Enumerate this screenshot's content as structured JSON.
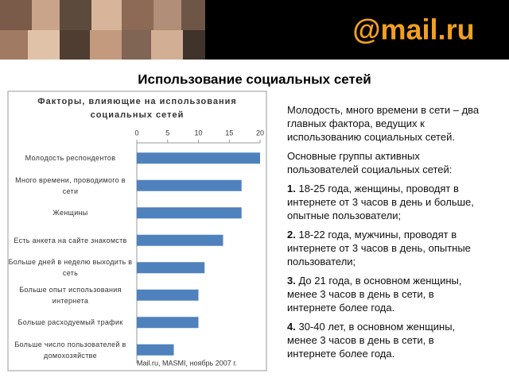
{
  "logo": "@mail.ru",
  "slide_title": "Использование социальных сетей",
  "chart_data": {
    "type": "hbar",
    "title": "Факторы, влияющие на использования социальных сетей",
    "categories": [
      "Молодость респондентов",
      "Много времени, проводимого в сети",
      "Женщины",
      "Есть анкета на сайте знакомств",
      "Больше дней в неделю выходить в сеть",
      "Больше опыт использования интернета",
      "Больше расходуемый трафик",
      "Больше число пользователей в домохозяйстве"
    ],
    "values": [
      20,
      17,
      17,
      14,
      11,
      10,
      10,
      6
    ],
    "color": "#4f81bd",
    "xlim": [
      0,
      20
    ],
    "xticks": [
      0,
      5,
      10,
      15,
      20
    ],
    "source": "Mail.ru, MASMI, ноябрь 2007 г."
  },
  "text": {
    "intro": "Молодость, много времени в сети – два главных фактора, ведущих к использованию социальных сетей.",
    "groups_heading": "Основные группы активных пользователей социальных сетей:",
    "items": [
      {
        "number": "1.",
        "text": "18-25 года, женщины,  проводят в интернете от 3 часов в день и больше, опытные пользователи;"
      },
      {
        "number": "2.",
        "text": "18-22 года, мужчины, проводят в интернете от 3 часов в день, опытные пользователи;"
      },
      {
        "number": "3.",
        "text": "До 21 года, в основном женщины, менее 3 часов в день в сети, в интернете более года."
      },
      {
        "number": "4.",
        "text": "30-40 лет, в основном женщины, менее 3 часов в день в сети, в интернете более года."
      }
    ]
  }
}
